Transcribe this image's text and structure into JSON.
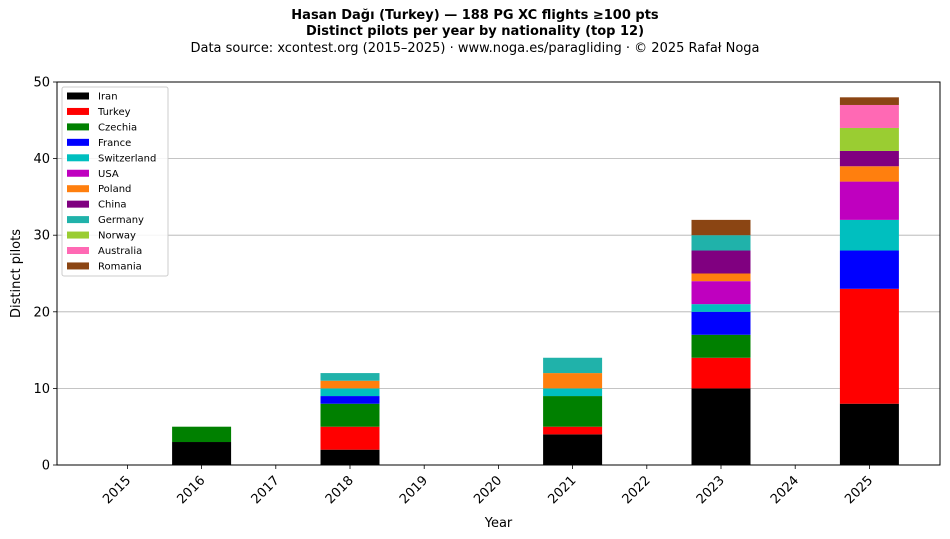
{
  "chart_data": {
    "type": "bar",
    "stacked": true,
    "title": "Hasan Dağı (Turkey)  —  188 PG XC flights ≥100 pts",
    "subtitle": "Distinct pilots per year by nationality (top 12)",
    "source": "Data source: xcontest.org (2015–2025)  ·  www.noga.es/paragliding  ·  © 2025 Rafał Noga",
    "xlabel": "Year",
    "ylabel": "Distinct pilots",
    "ylim": [
      0,
      50
    ],
    "yticks": [
      0,
      10,
      20,
      30,
      40,
      50
    ],
    "grid": "horizontal",
    "legend_position": "top-left",
    "categories": [
      "2015",
      "2016",
      "2017",
      "2018",
      "2019",
      "2020",
      "2021",
      "2022",
      "2023",
      "2024",
      "2025"
    ],
    "series": [
      {
        "name": "Iran",
        "color": "#000000",
        "values": [
          0,
          3,
          0,
          2,
          0,
          0,
          4,
          0,
          10,
          0,
          8
        ]
      },
      {
        "name": "Turkey",
        "color": "#ff0000",
        "values": [
          0,
          0,
          0,
          3,
          0,
          0,
          1,
          0,
          4,
          0,
          15
        ]
      },
      {
        "name": "Czechia",
        "color": "#008000",
        "values": [
          0,
          2,
          0,
          3,
          0,
          0,
          4,
          0,
          3,
          0,
          0
        ]
      },
      {
        "name": "France",
        "color": "#0000ff",
        "values": [
          0,
          0,
          0,
          1,
          0,
          0,
          0,
          0,
          3,
          0,
          5
        ]
      },
      {
        "name": "Switzerland",
        "color": "#00bfbf",
        "values": [
          0,
          0,
          0,
          1,
          0,
          0,
          1,
          0,
          1,
          0,
          4
        ]
      },
      {
        "name": "USA",
        "color": "#bf00bf",
        "values": [
          0,
          0,
          0,
          0,
          0,
          0,
          0,
          0,
          3,
          0,
          5
        ]
      },
      {
        "name": "Poland",
        "color": "#ff7f0e",
        "values": [
          0,
          0,
          0,
          1,
          0,
          0,
          2,
          0,
          1,
          0,
          2
        ]
      },
      {
        "name": "China",
        "color": "#800080",
        "values": [
          0,
          0,
          0,
          0,
          0,
          0,
          0,
          0,
          3,
          0,
          2
        ]
      },
      {
        "name": "Germany",
        "color": "#20b2aa",
        "values": [
          0,
          0,
          0,
          1,
          0,
          0,
          2,
          0,
          2,
          0,
          0
        ]
      },
      {
        "name": "Norway",
        "color": "#9acd32",
        "values": [
          0,
          0,
          0,
          0,
          0,
          0,
          0,
          0,
          0,
          0,
          3
        ]
      },
      {
        "name": "Australia",
        "color": "#ff69b4",
        "values": [
          0,
          0,
          0,
          0,
          0,
          0,
          0,
          0,
          0,
          0,
          3
        ]
      },
      {
        "name": "Romania",
        "color": "#8b4513",
        "values": [
          0,
          0,
          0,
          0,
          0,
          0,
          0,
          0,
          2,
          0,
          1
        ]
      }
    ]
  }
}
